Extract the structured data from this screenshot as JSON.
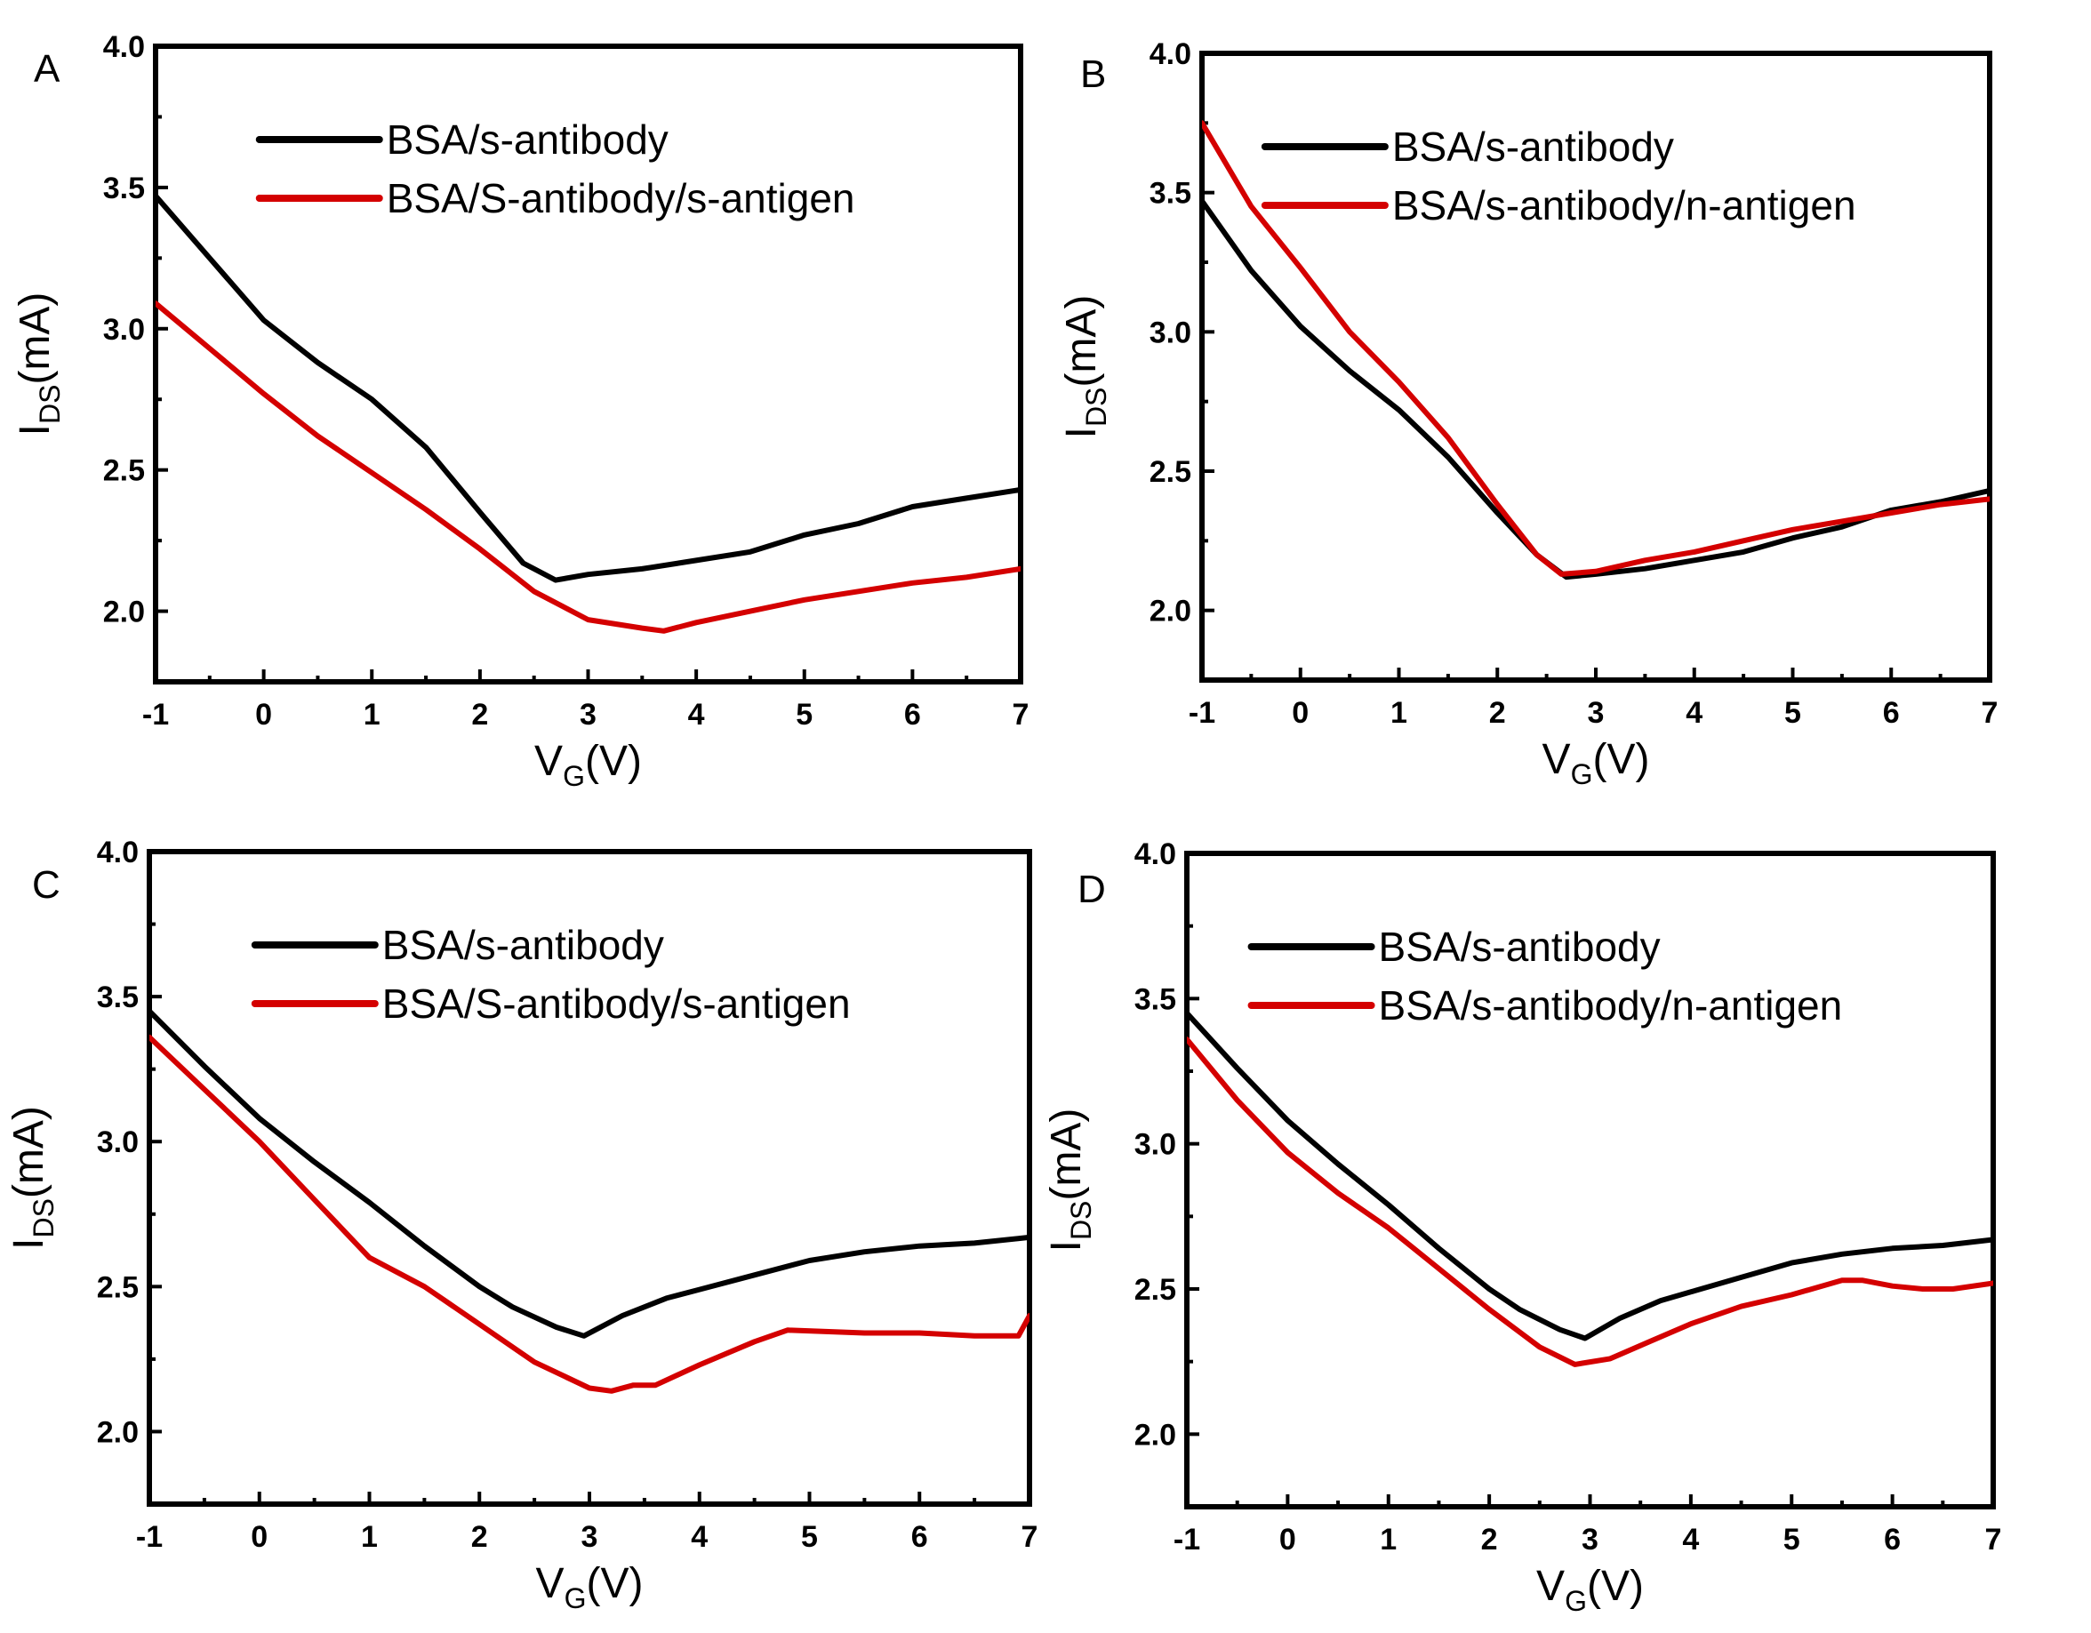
{
  "chart_data": [
    {
      "type": "line",
      "panel": "A",
      "title": "",
      "xlabel": "V_G(V)",
      "ylabel": "I_DS(mA)",
      "xlim": [
        -1,
        7
      ],
      "ylim": [
        1.75,
        4.0
      ],
      "xticks": [
        "-1",
        "0",
        "1",
        "2",
        "3",
        "4",
        "5",
        "6",
        "7"
      ],
      "yticks": [
        "2.0",
        "2.5",
        "3.0",
        "3.5",
        "4.0"
      ],
      "grid": false,
      "legend_position": "top-right",
      "series": [
        {
          "name": "BSA/s-antibody",
          "color": "#000000",
          "x": [
            -1,
            -0.5,
            0,
            0.5,
            1,
            1.5,
            2,
            2.4,
            2.7,
            3,
            3.5,
            4,
            4.5,
            5,
            5.5,
            6,
            6.5,
            7
          ],
          "y": [
            3.47,
            3.25,
            3.03,
            2.88,
            2.75,
            2.58,
            2.35,
            2.17,
            2.11,
            2.13,
            2.15,
            2.18,
            2.21,
            2.27,
            2.31,
            2.37,
            2.4,
            2.43
          ]
        },
        {
          "name": "BSA/S-antibody/s-antigen",
          "color": "#d40000",
          "x": [
            -1,
            -0.5,
            0,
            0.5,
            1,
            1.5,
            2,
            2.5,
            3,
            3.5,
            3.7,
            4,
            4.5,
            5,
            5.5,
            6,
            6.5,
            7
          ],
          "y": [
            3.09,
            2.93,
            2.77,
            2.62,
            2.49,
            2.36,
            2.22,
            2.07,
            1.97,
            1.94,
            1.93,
            1.96,
            2.0,
            2.04,
            2.07,
            2.1,
            2.12,
            2.15
          ]
        }
      ]
    },
    {
      "type": "line",
      "panel": "B",
      "title": "",
      "xlabel": "V_G(V)",
      "ylabel": "I_DS(mA)",
      "xlim": [
        -1,
        7
      ],
      "ylim": [
        1.75,
        4.0
      ],
      "xticks": [
        "-1",
        "0",
        "1",
        "2",
        "3",
        "4",
        "5",
        "6",
        "7"
      ],
      "yticks": [
        "2.0",
        "2.5",
        "3.0",
        "3.5",
        "4.0"
      ],
      "grid": false,
      "legend_position": "top-right",
      "series": [
        {
          "name": "BSA/s-antibody",
          "color": "#000000",
          "x": [
            -1,
            -0.5,
            0,
            0.5,
            1,
            1.5,
            2,
            2.4,
            2.7,
            3,
            3.5,
            4,
            4.5,
            5,
            5.5,
            6,
            6.5,
            7
          ],
          "y": [
            3.47,
            3.22,
            3.02,
            2.86,
            2.72,
            2.55,
            2.35,
            2.2,
            2.12,
            2.13,
            2.15,
            2.18,
            2.21,
            2.26,
            2.3,
            2.36,
            2.39,
            2.43
          ]
        },
        {
          "name": "BSA/s-antibody/n-antigen",
          "color": "#d40000",
          "x": [
            -1,
            -0.5,
            0,
            0.5,
            1,
            1.5,
            2,
            2.4,
            2.65,
            3,
            3.5,
            4,
            4.5,
            5,
            5.5,
            6,
            6.5,
            7
          ],
          "y": [
            3.75,
            3.45,
            3.23,
            3.0,
            2.82,
            2.62,
            2.38,
            2.2,
            2.13,
            2.14,
            2.18,
            2.21,
            2.25,
            2.29,
            2.32,
            2.35,
            2.38,
            2.4
          ]
        }
      ]
    },
    {
      "type": "line",
      "panel": "C",
      "title": "",
      "xlabel": "V_G(V)",
      "ylabel": "I_DS(mA)",
      "xlim": [
        -1,
        7
      ],
      "ylim": [
        1.75,
        4.0
      ],
      "xticks": [
        "-1",
        "0",
        "1",
        "2",
        "3",
        "4",
        "5",
        "6",
        "7"
      ],
      "yticks": [
        "2.0",
        "2.5",
        "3.0",
        "3.5",
        "4.0"
      ],
      "grid": false,
      "legend_position": "top-right",
      "series": [
        {
          "name": "BSA/s-antibody",
          "color": "#000000",
          "x": [
            -1,
            -0.5,
            0,
            0.5,
            1,
            1.5,
            2,
            2.3,
            2.7,
            2.95,
            3.3,
            3.7,
            4,
            4.5,
            5,
            5.5,
            6,
            6.5,
            7
          ],
          "y": [
            3.45,
            3.26,
            3.08,
            2.93,
            2.79,
            2.64,
            2.5,
            2.43,
            2.36,
            2.33,
            2.4,
            2.46,
            2.49,
            2.54,
            2.59,
            2.62,
            2.64,
            2.65,
            2.67
          ]
        },
        {
          "name": "BSA/S-antibody/s-antigen",
          "color": "#d40000",
          "x": [
            -1,
            -0.5,
            0,
            0.5,
            1,
            1.5,
            2,
            2.5,
            3,
            3.2,
            3.4,
            3.6,
            4,
            4.5,
            4.8,
            5.5,
            6,
            6.5,
            6.9,
            7
          ],
          "y": [
            3.36,
            3.18,
            3.0,
            2.8,
            2.6,
            2.5,
            2.37,
            2.24,
            2.15,
            2.14,
            2.16,
            2.16,
            2.23,
            2.31,
            2.35,
            2.34,
            2.34,
            2.33,
            2.33,
            2.4
          ]
        }
      ]
    },
    {
      "type": "line",
      "panel": "D",
      "title": "",
      "xlabel": "V_G(V)",
      "ylabel": "I_DS(mA)",
      "xlim": [
        -1,
        7
      ],
      "ylim": [
        1.75,
        4.0
      ],
      "xticks": [
        "-1",
        "0",
        "1",
        "2",
        "3",
        "4",
        "5",
        "6",
        "7"
      ],
      "yticks": [
        "2.0",
        "2.5",
        "3.0",
        "3.5",
        "4.0"
      ],
      "grid": false,
      "legend_position": "top-right",
      "series": [
        {
          "name": "BSA/s-antibody",
          "color": "#000000",
          "x": [
            -1,
            -0.5,
            0,
            0.5,
            1,
            1.5,
            2,
            2.3,
            2.7,
            2.95,
            3.3,
            3.7,
            4,
            4.5,
            5,
            5.5,
            6,
            6.5,
            7
          ],
          "y": [
            3.45,
            3.26,
            3.08,
            2.93,
            2.79,
            2.64,
            2.5,
            2.43,
            2.36,
            2.33,
            2.4,
            2.46,
            2.49,
            2.54,
            2.59,
            2.62,
            2.64,
            2.65,
            2.67
          ]
        },
        {
          "name": "BSA/s-antibody/n-antigen",
          "color": "#d40000",
          "x": [
            -1,
            -0.5,
            0,
            0.5,
            1,
            1.5,
            2,
            2.5,
            2.85,
            3.2,
            3.6,
            4,
            4.5,
            5,
            5.5,
            5.7,
            6,
            6.3,
            6.6,
            7
          ],
          "y": [
            3.36,
            3.15,
            2.97,
            2.83,
            2.71,
            2.57,
            2.43,
            2.3,
            2.24,
            2.26,
            2.32,
            2.38,
            2.44,
            2.48,
            2.53,
            2.53,
            2.51,
            2.5,
            2.5,
            2.52
          ]
        }
      ]
    }
  ],
  "panels": [
    {
      "letter": "A",
      "xlabel_main": "V",
      "xlabel_sub": "G",
      "xlabel_tail": "(V)",
      "ylabel_main": "I",
      "ylabel_sub": "DS",
      "ylabel_tail": "(mA)"
    },
    {
      "letter": "B",
      "xlabel_main": "V",
      "xlabel_sub": "G",
      "xlabel_tail": "(V)",
      "ylabel_main": "I",
      "ylabel_sub": "DS",
      "ylabel_tail": "(mA)"
    },
    {
      "letter": "C",
      "xlabel_main": "V",
      "xlabel_sub": "G",
      "xlabel_tail": "(V)",
      "ylabel_main": "I",
      "ylabel_sub": "DS",
      "ylabel_tail": "(mA)"
    },
    {
      "letter": "D",
      "xlabel_main": "V",
      "xlabel_sub": "G",
      "xlabel_tail": "(V)",
      "ylabel_main": "I",
      "ylabel_sub": "DS",
      "ylabel_tail": "(mA)"
    }
  ]
}
